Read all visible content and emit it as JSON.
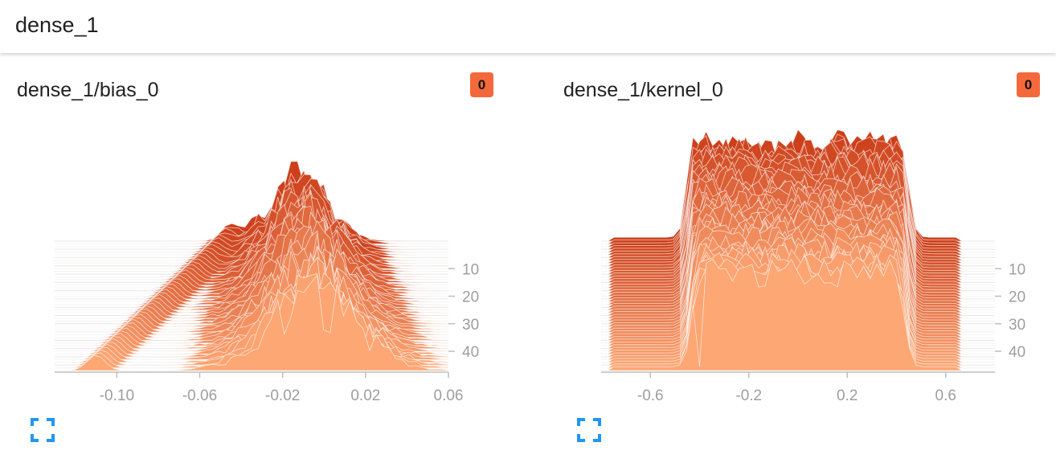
{
  "header": {
    "title": "dense_1"
  },
  "charts": [
    {
      "title": "dense_1/bias_0",
      "badge": "0"
    },
    {
      "title": "dense_1/kernel_0",
      "badge": "0"
    }
  ],
  "colors": {
    "badge": "#f4693b",
    "histogram_light": "#fda774",
    "histogram_dark": "#cc3f1a",
    "fullscreen_icon": "#2196f3",
    "axis": "#bdbdbd"
  },
  "chart_data": [
    {
      "type": "histogram-offset",
      "title": "dense_1/bias_0",
      "x_ticks": [
        "-0.10",
        "-0.06",
        "-0.02",
        "0.02",
        "0.06"
      ],
      "x_tick_values": [
        -0.1,
        -0.06,
        -0.02,
        0.02,
        0.06
      ],
      "xlim": [
        -0.13,
        0.06
      ],
      "y_ticks": [
        "10",
        "20",
        "30",
        "40"
      ],
      "y_tick_values": [
        10,
        20,
        30,
        40
      ],
      "steps": [
        0,
        47
      ],
      "distribution": {
        "start": {
          "outlier_center": -0.045,
          "main_center": -0.012,
          "main_spread": 0.02,
          "peak": 0.45
        },
        "end": {
          "outlier_center": -0.11,
          "main_center": -0.005,
          "main_spread": 0.03,
          "peak": 0.55
        }
      }
    },
    {
      "type": "histogram-offset",
      "title": "dense_1/kernel_0",
      "x_ticks": [
        "-0.6",
        "-0.2",
        "0.2",
        "0.6"
      ],
      "x_tick_values": [
        -0.6,
        -0.2,
        0.2,
        0.6
      ],
      "xlim": [
        -0.8,
        0.8
      ],
      "y_ticks": [
        "10",
        "20",
        "30",
        "40"
      ],
      "y_tick_values": [
        10,
        20,
        30,
        40
      ],
      "steps": [
        0,
        47
      ],
      "distribution": {
        "start": {
          "plateau_low": -0.42,
          "plateau_high": 0.42,
          "tail_low": -0.75,
          "tail_high": 0.65
        },
        "end": {
          "plateau_low": -0.4,
          "plateau_high": 0.4,
          "tail_low": -0.75,
          "tail_high": 0.65
        }
      }
    }
  ]
}
